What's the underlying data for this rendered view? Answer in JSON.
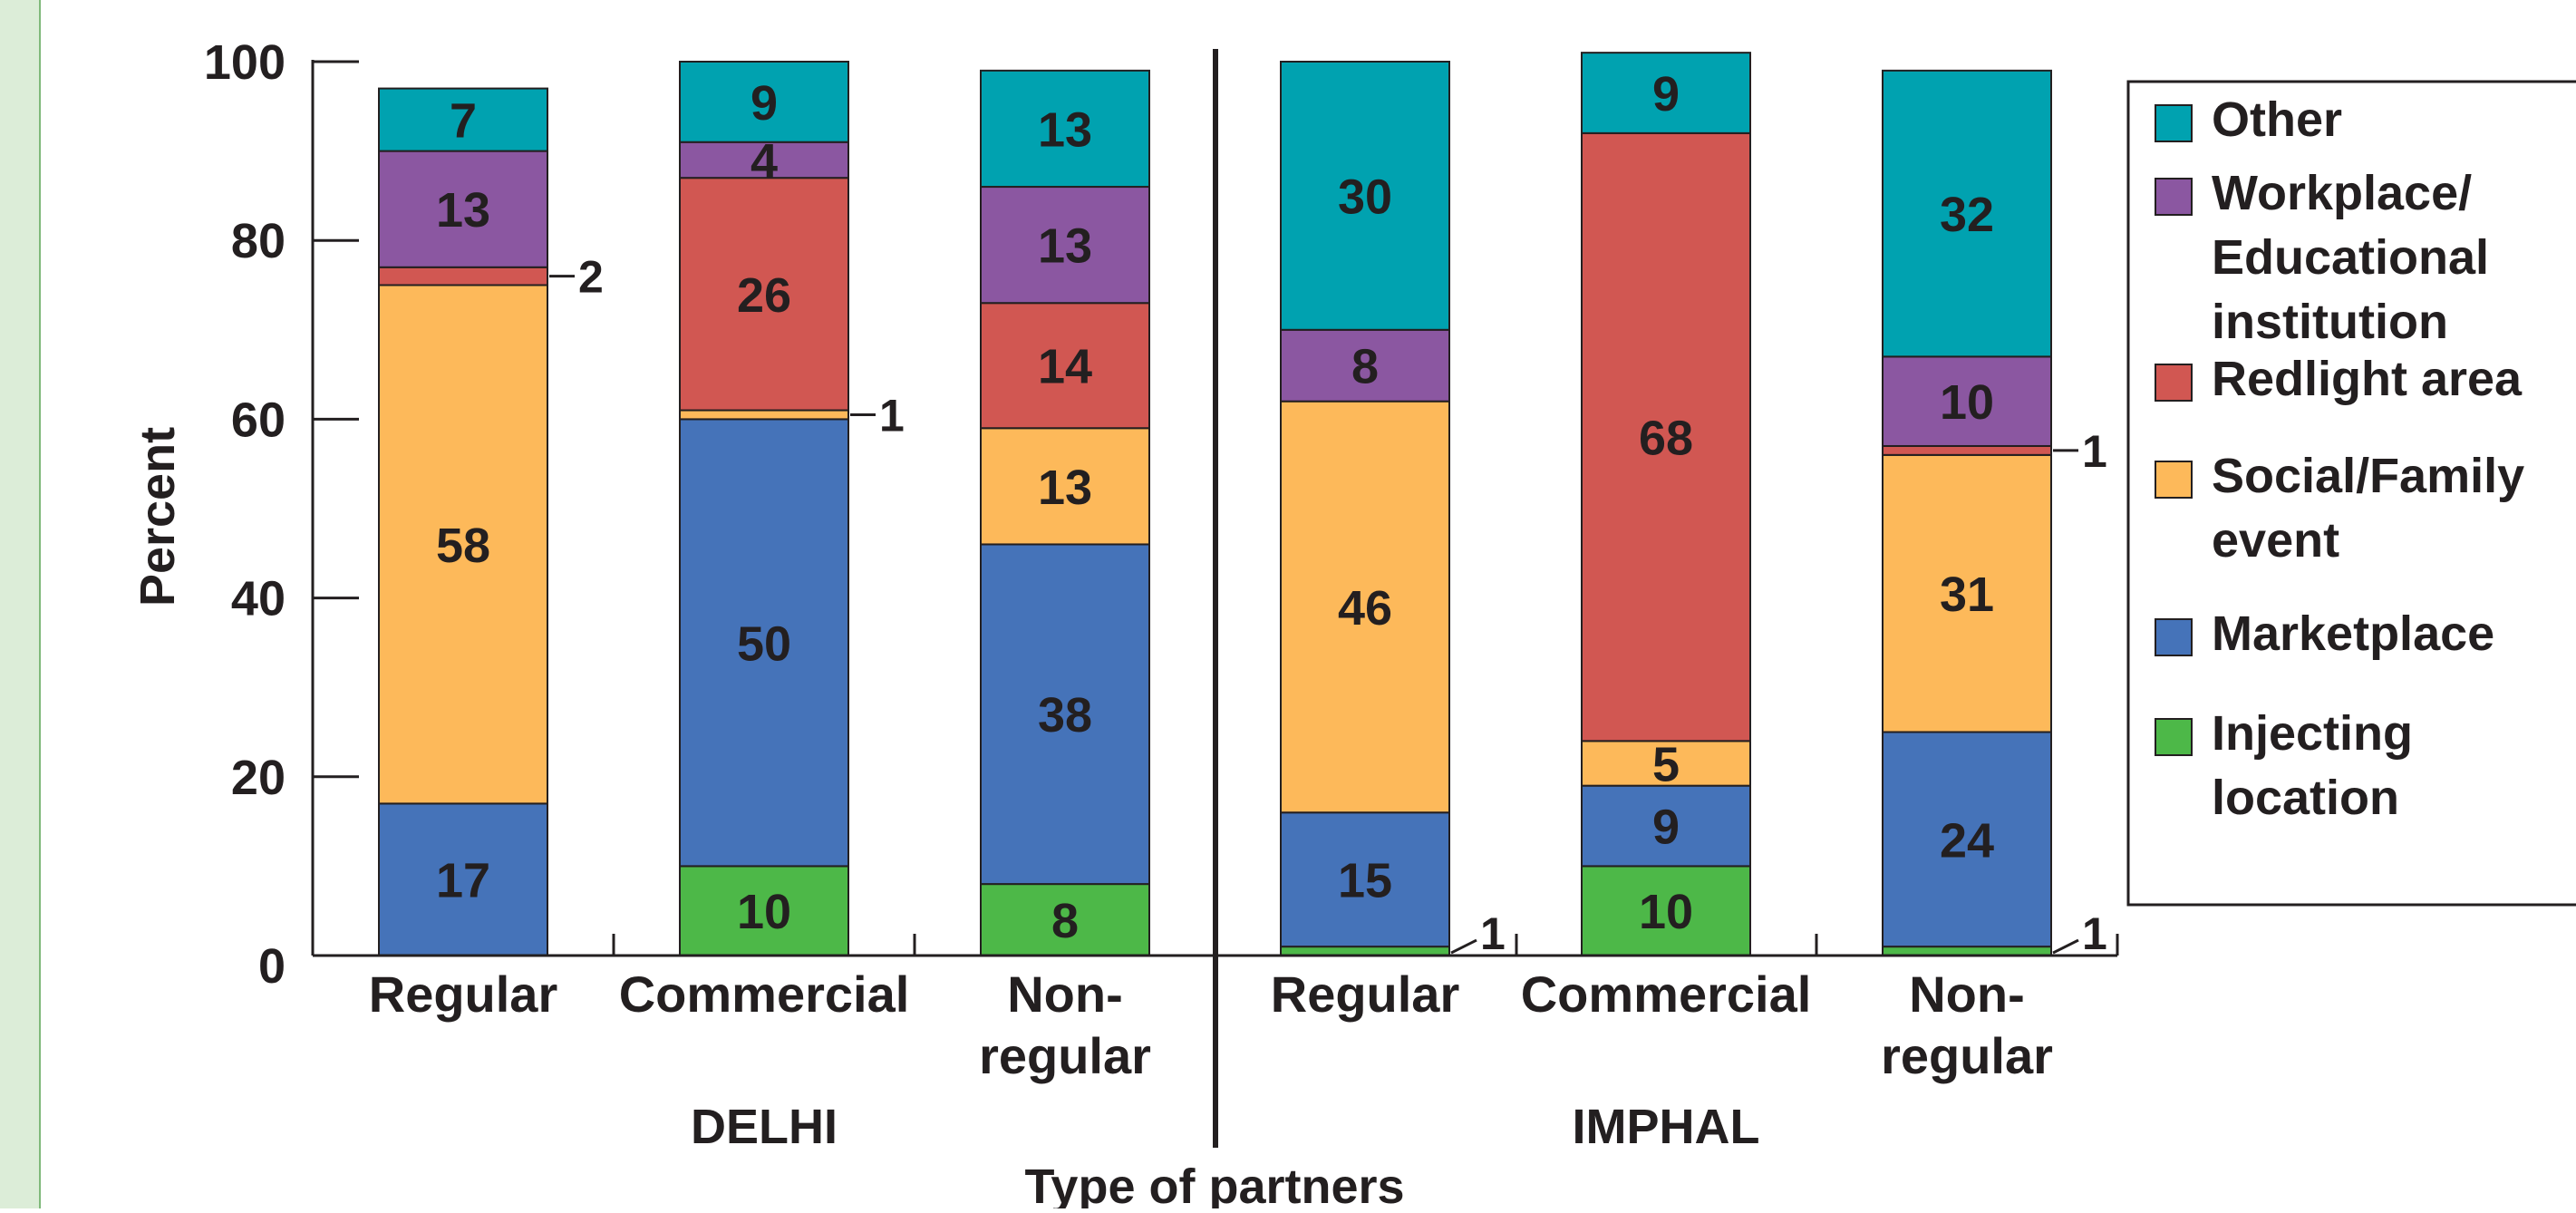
{
  "chart_data": {
    "type": "bar",
    "stacked": true,
    "title": "",
    "xlabel": "Type of partners",
    "ylabel": "Percent",
    "ylim": [
      0,
      100
    ],
    "yticks": [
      0,
      20,
      40,
      60,
      80,
      100
    ],
    "groups": [
      {
        "name": "DELHI",
        "categories": [
          "Regular",
          "Commercial",
          "Non-\nregular"
        ]
      },
      {
        "name": "IMPHAL",
        "categories": [
          "Regular",
          "Commercial",
          "Non-\nregular"
        ]
      }
    ],
    "series_order": [
      "Injecting location",
      "Marketplace",
      "Social/Family event",
      "Redlight area",
      "Workplace/ Educational institution",
      "Other"
    ],
    "series": [
      {
        "name": "Injecting location",
        "legend_label": "Injecting\nlocation",
        "color": "#4db848",
        "values": [
          0,
          10,
          8,
          1,
          10,
          1
        ]
      },
      {
        "name": "Marketplace",
        "legend_label": "Marketplace",
        "color": "#4573b9",
        "values": [
          17,
          50,
          38,
          15,
          9,
          24
        ]
      },
      {
        "name": "Social/Family event",
        "legend_label": "Social/Family\nevent",
        "color": "#fdb95a",
        "values": [
          58,
          1,
          13,
          46,
          5,
          31
        ]
      },
      {
        "name": "Redlight area",
        "legend_label": "Redlight area",
        "color": "#d15752",
        "values": [
          2,
          26,
          14,
          0,
          68,
          1
        ]
      },
      {
        "name": "Workplace/ Educational institution",
        "legend_label": "Workplace/\nEducational\ninstitution",
        "color": "#8b57a1",
        "values": [
          13,
          4,
          13,
          8,
          0,
          10
        ]
      },
      {
        "name": "Other",
        "legend_label": "Other",
        "color": "#00a2b0",
        "values": [
          7,
          9,
          13,
          30,
          9,
          32
        ]
      }
    ],
    "legend_order": [
      "Other",
      "Workplace/ Educational institution",
      "Redlight area",
      "Social/Family event",
      "Marketplace",
      "Injecting location"
    ],
    "legend_position": "right",
    "callouts": [
      {
        "bar": 0,
        "series": "Redlight area",
        "label": "2"
      },
      {
        "bar": 1,
        "series": "Social/Family event",
        "label": "1"
      },
      {
        "bar": 3,
        "series": "Injecting location",
        "label": "1"
      },
      {
        "bar": 5,
        "series": "Redlight area",
        "label": "1"
      },
      {
        "bar": 5,
        "series": "Injecting location",
        "label": "1"
      }
    ],
    "grid": false,
    "background_colors": {
      "page": "#ffffff",
      "left_strip": "#dcedd8"
    }
  }
}
